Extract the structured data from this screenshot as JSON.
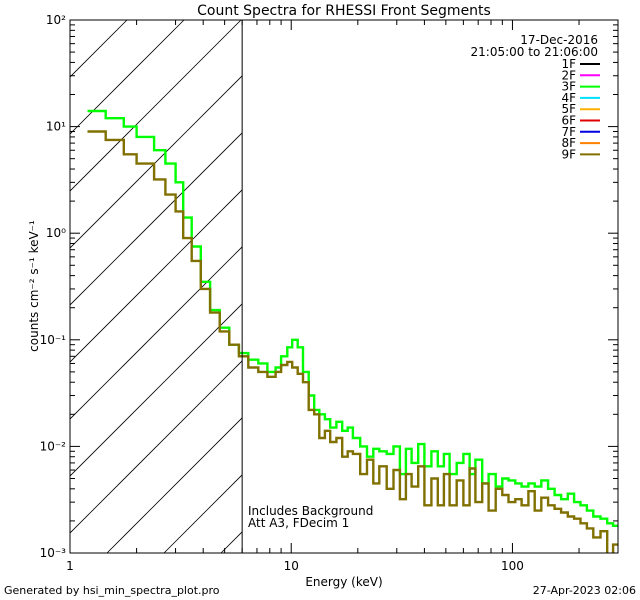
{
  "chart_data": {
    "type": "line",
    "title": "Count Spectra for RHESSI Front Segments",
    "xlabel": "Energy (keV)",
    "ylabel": "counts cm⁻² s⁻¹ keV⁻¹",
    "xscale": "log",
    "yscale": "log",
    "xlim": [
      1,
      300
    ],
    "ylim": [
      0.001,
      100
    ],
    "x_ticks": [
      "1",
      "10",
      "100"
    ],
    "y_ticks": [
      "10⁻³",
      "10⁻²",
      "10⁻¹",
      "10⁰",
      "10¹",
      "10²"
    ],
    "date": "17-Dec-2016",
    "time_range": "21:05:00 to 21:06:00",
    "attenuator_note": "Att A3, FDecim 1",
    "background_note": "Includes Background",
    "hatched_below_keV": 6,
    "legend_position": "top-right",
    "legend": [
      {
        "label": "1F",
        "color": "#000000"
      },
      {
        "label": "2F",
        "color": "#ff00ff"
      },
      {
        "label": "3F",
        "color": "#00ff00"
      },
      {
        "label": "4F",
        "color": "#00e0ff"
      },
      {
        "label": "5F",
        "color": "#ffb000"
      },
      {
        "label": "6F",
        "color": "#e00000"
      },
      {
        "label": "7F",
        "color": "#0000e0"
      },
      {
        "label": "8F",
        "color": "#ff8000"
      },
      {
        "label": "9F",
        "color": "#807000"
      }
    ],
    "series": [
      {
        "name": "3F",
        "color": "#00ff00",
        "points": [
          [
            1.2,
            14
          ],
          [
            1.45,
            12
          ],
          [
            1.75,
            10
          ],
          [
            2.0,
            8
          ],
          [
            2.4,
            6
          ],
          [
            2.7,
            4.5
          ],
          [
            3.0,
            3
          ],
          [
            3.25,
            1.4
          ],
          [
            3.55,
            0.75
          ],
          [
            3.9,
            0.35
          ],
          [
            4.3,
            0.19
          ],
          [
            4.75,
            0.13
          ],
          [
            5.25,
            0.09
          ],
          [
            5.8,
            0.075
          ],
          [
            6.4,
            0.065
          ],
          [
            7.1,
            0.06
          ],
          [
            7.8,
            0.05
          ],
          [
            8.5,
            0.055
          ],
          [
            9.0,
            0.07
          ],
          [
            9.6,
            0.085
          ],
          [
            10.1,
            0.1
          ],
          [
            10.7,
            0.085
          ],
          [
            11.3,
            0.05
          ],
          [
            12.0,
            0.03
          ],
          [
            12.7,
            0.022
          ],
          [
            13.4,
            0.02
          ],
          [
            14.2,
            0.018
          ],
          [
            15.0,
            0.015
          ],
          [
            16.0,
            0.017
          ],
          [
            17.0,
            0.014
          ],
          [
            18.0,
            0.015
          ],
          [
            19.0,
            0.012
          ],
          [
            20.5,
            0.01
          ],
          [
            22.0,
            0.008
          ],
          [
            23.5,
            0.0095
          ],
          [
            25.0,
            0.009
          ],
          [
            27.0,
            0.0085
          ],
          [
            29.0,
            0.01
          ],
          [
            31.0,
            0.0055
          ],
          [
            33.0,
            0.0095
          ],
          [
            35.0,
            0.007
          ],
          [
            37.5,
            0.0105
          ],
          [
            40.0,
            0.0065
          ],
          [
            43.0,
            0.009
          ],
          [
            46.0,
            0.0065
          ],
          [
            49.0,
            0.0085
          ],
          [
            52.0,
            0.0055
          ],
          [
            56.0,
            0.007
          ],
          [
            60.0,
            0.0085
          ],
          [
            64.0,
            0.0055
          ],
          [
            68.0,
            0.0075
          ],
          [
            73.0,
            0.0045
          ],
          [
            78.0,
            0.0055
          ],
          [
            84.0,
            0.0042
          ],
          [
            90.0,
            0.005
          ],
          [
            96.0,
            0.0048
          ],
          [
            103.0,
            0.0045
          ],
          [
            110.0,
            0.0042
          ],
          [
            118.0,
            0.0045
          ],
          [
            126.0,
            0.0042
          ],
          [
            135.0,
            0.0048
          ],
          [
            145.0,
            0.004
          ],
          [
            155.0,
            0.0035
          ],
          [
            166.0,
            0.0032
          ],
          [
            178.0,
            0.0036
          ],
          [
            190.0,
            0.003
          ],
          [
            203.0,
            0.0028
          ],
          [
            217.0,
            0.0025
          ],
          [
            232.0,
            0.0022
          ],
          [
            250.0,
            0.0021
          ],
          [
            268.0,
            0.0019
          ],
          [
            285.0,
            0.0018
          ]
        ]
      },
      {
        "name": "9F",
        "color": "#807000",
        "points": [
          [
            1.2,
            9
          ],
          [
            1.45,
            7.5
          ],
          [
            1.75,
            5.5
          ],
          [
            2.0,
            4.5
          ],
          [
            2.4,
            3.2
          ],
          [
            2.7,
            2.3
          ],
          [
            3.0,
            1.6
          ],
          [
            3.25,
            0.9
          ],
          [
            3.55,
            0.55
          ],
          [
            3.9,
            0.3
          ],
          [
            4.3,
            0.18
          ],
          [
            4.75,
            0.12
          ],
          [
            5.25,
            0.09
          ],
          [
            5.8,
            0.07
          ],
          [
            6.4,
            0.055
          ],
          [
            7.1,
            0.05
          ],
          [
            7.8,
            0.045
          ],
          [
            8.5,
            0.05
          ],
          [
            9.0,
            0.058
          ],
          [
            9.6,
            0.062
          ],
          [
            10.1,
            0.055
          ],
          [
            10.7,
            0.048
          ],
          [
            11.3,
            0.04
          ],
          [
            12.0,
            0.022
          ],
          [
            12.7,
            0.02
          ],
          [
            13.4,
            0.012
          ],
          [
            14.2,
            0.014
          ],
          [
            15.0,
            0.011
          ],
          [
            16.0,
            0.012
          ],
          [
            17.0,
            0.008
          ],
          [
            18.0,
            0.009
          ],
          [
            19.0,
            0.0085
          ],
          [
            20.5,
            0.0055
          ],
          [
            22.0,
            0.0075
          ],
          [
            23.5,
            0.0045
          ],
          [
            25.0,
            0.0065
          ],
          [
            27.0,
            0.004
          ],
          [
            29.0,
            0.006
          ],
          [
            31.0,
            0.0032
          ],
          [
            33.0,
            0.0055
          ],
          [
            35.0,
            0.0042
          ],
          [
            37.5,
            0.0065
          ],
          [
            40.0,
            0.0028
          ],
          [
            43.0,
            0.005
          ],
          [
            46.0,
            0.0028
          ],
          [
            49.0,
            0.0055
          ],
          [
            52.0,
            0.0028
          ],
          [
            56.0,
            0.0048
          ],
          [
            60.0,
            0.0028
          ],
          [
            64.0,
            0.0062
          ],
          [
            68.0,
            0.003
          ],
          [
            73.0,
            0.0045
          ],
          [
            78.0,
            0.0025
          ],
          [
            84.0,
            0.004
          ],
          [
            90.0,
            0.0035
          ],
          [
            96.0,
            0.003
          ],
          [
            103.0,
            0.0032
          ],
          [
            110.0,
            0.0028
          ],
          [
            118.0,
            0.0038
          ],
          [
            126.0,
            0.0025
          ],
          [
            135.0,
            0.0033
          ],
          [
            145.0,
            0.0028
          ],
          [
            155.0,
            0.0026
          ],
          [
            166.0,
            0.0024
          ],
          [
            178.0,
            0.0022
          ],
          [
            190.0,
            0.0021
          ],
          [
            203.0,
            0.0019
          ],
          [
            217.0,
            0.0017
          ],
          [
            232.0,
            0.0014
          ],
          [
            250.0,
            0.0016
          ],
          [
            268.0,
            0.0009
          ],
          [
            285.0,
            0.0012
          ]
        ]
      }
    ]
  },
  "footer": {
    "generated_by": "Generated by hsi_min_spectra_plot.pro",
    "timestamp": "27-Apr-2023 02:06"
  }
}
